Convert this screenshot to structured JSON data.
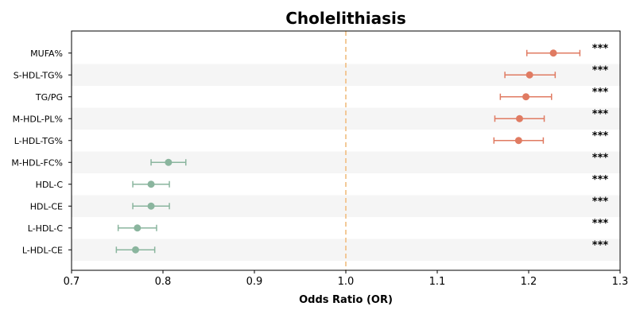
{
  "chart_data": {
    "type": "forest",
    "title": "Cholelithiasis",
    "xlabel": "Odds Ratio (OR)",
    "xlim": [
      0.7,
      1.3
    ],
    "xticks": [
      "0.7",
      "0.8",
      "0.9",
      "1.0",
      "1.1",
      "1.2",
      "1.3"
    ],
    "reference_line": 1.0,
    "reference_color": "#f2c48d",
    "colors": {
      "risk": "#e07b62",
      "protective": "#8ab59e",
      "band": "#f5f5f5"
    },
    "rows": [
      {
        "label": "MUFA%",
        "or": 1.227,
        "lo": 1.198,
        "hi": 1.256,
        "sig": "***",
        "group": "risk"
      },
      {
        "label": "S-HDL-TG%",
        "or": 1.201,
        "lo": 1.174,
        "hi": 1.229,
        "sig": "***",
        "group": "risk"
      },
      {
        "label": "TG/PG",
        "or": 1.197,
        "lo": 1.169,
        "hi": 1.225,
        "sig": "***",
        "group": "risk"
      },
      {
        "label": "M-HDL-PL%",
        "or": 1.19,
        "lo": 1.163,
        "hi": 1.217,
        "sig": "***",
        "group": "risk"
      },
      {
        "label": "L-HDL-TG%",
        "or": 1.189,
        "lo": 1.162,
        "hi": 1.216,
        "sig": "***",
        "group": "risk"
      },
      {
        "label": "M-HDL-FC%",
        "or": 0.806,
        "lo": 0.787,
        "hi": 0.825,
        "sig": "***",
        "group": "protective"
      },
      {
        "label": "HDL-C",
        "or": 0.787,
        "lo": 0.767,
        "hi": 0.807,
        "sig": "***",
        "group": "protective"
      },
      {
        "label": "HDL-CE",
        "or": 0.787,
        "lo": 0.767,
        "hi": 0.807,
        "sig": "***",
        "group": "protective"
      },
      {
        "label": "L-HDL-C",
        "or": 0.772,
        "lo": 0.751,
        "hi": 0.793,
        "sig": "***",
        "group": "protective"
      },
      {
        "label": "L-HDL-CE",
        "or": 0.77,
        "lo": 0.749,
        "hi": 0.791,
        "sig": "***",
        "group": "protective"
      }
    ]
  }
}
